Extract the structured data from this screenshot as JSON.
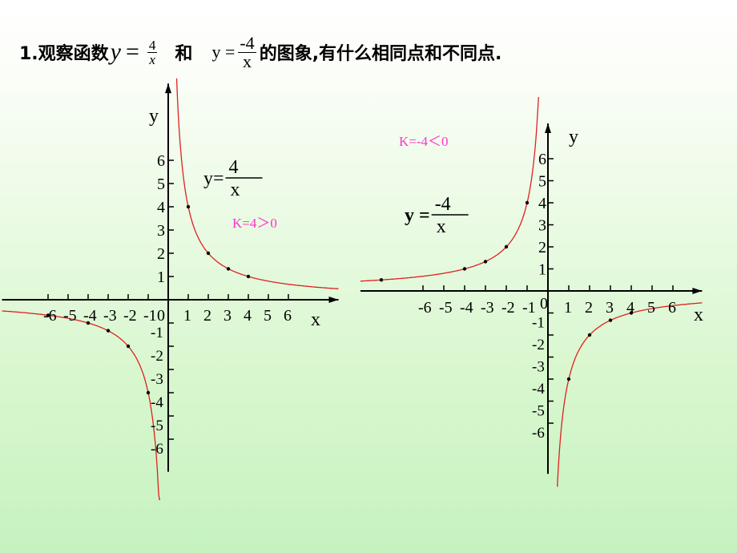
{
  "title": {
    "prefix": "1.观察函数",
    "f1": {
      "y": "y",
      "eq": "=",
      "num": "4",
      "den": "x"
    },
    "and": "和",
    "f2": {
      "lhs": "y =",
      "num": "-4",
      "den": "x"
    },
    "suffix": "的图象,有什么相同点和不同点."
  },
  "chart_data": [
    {
      "type": "line",
      "function": "y = 4/x",
      "xlabel": "x",
      "ylabel": "y",
      "origin_label": "0",
      "x_tick_labels": [
        "-6",
        "-5",
        "-4",
        "-3",
        "-2",
        "-1",
        "1",
        "2",
        "3",
        "4",
        "5",
        "6"
      ],
      "y_tick_labels_pos": [
        "1",
        "2",
        "3",
        "4",
        "5",
        "6"
      ],
      "y_tick_labels_neg": [
        "-1",
        "-2",
        "-3",
        "-4",
        "-5",
        "-6"
      ],
      "formula": {
        "lhs": "y=",
        "num": "4",
        "den": "x"
      },
      "annotation": "K=4＞0",
      "points": [
        {
          "x": -6,
          "y": -0.67
        },
        {
          "x": -4,
          "y": -1
        },
        {
          "x": -3,
          "y": -1.33
        },
        {
          "x": -2,
          "y": -2
        },
        {
          "x": -1,
          "y": -4
        },
        {
          "x": 1,
          "y": 4
        },
        {
          "x": 2,
          "y": 2
        },
        {
          "x": 3,
          "y": 1.33
        },
        {
          "x": 4,
          "y": 1
        }
      ]
    },
    {
      "type": "line",
      "function": "y = -4/x",
      "xlabel": "x",
      "ylabel": "y",
      "origin_label": "0",
      "x_tick_labels": [
        "-6",
        "-5",
        "-4",
        "-3",
        "-2",
        "-1",
        "1",
        "2",
        "3",
        "4",
        "5",
        "6"
      ],
      "y_tick_labels_pos": [
        "1",
        "2",
        "3",
        "4",
        "5",
        "6"
      ],
      "y_tick_labels_neg": [
        "-1",
        "-2",
        "-3",
        "-4",
        "-5",
        "-6"
      ],
      "formula": {
        "lhs": "y =",
        "num": "-4",
        "den": "x"
      },
      "annotation": "K=-4＜0",
      "points": [
        {
          "x": -8,
          "y": 0.5
        },
        {
          "x": -4,
          "y": 1
        },
        {
          "x": -3,
          "y": 1.33
        },
        {
          "x": -2,
          "y": 2
        },
        {
          "x": -1,
          "y": 4
        },
        {
          "x": 1,
          "y": -4
        },
        {
          "x": 2,
          "y": -2
        },
        {
          "x": 3,
          "y": -1.33
        },
        {
          "x": 4,
          "y": -1
        }
      ]
    }
  ],
  "colors": {
    "curve": "#e02020",
    "annotation": "#ff33cc",
    "axis": "#000000"
  }
}
